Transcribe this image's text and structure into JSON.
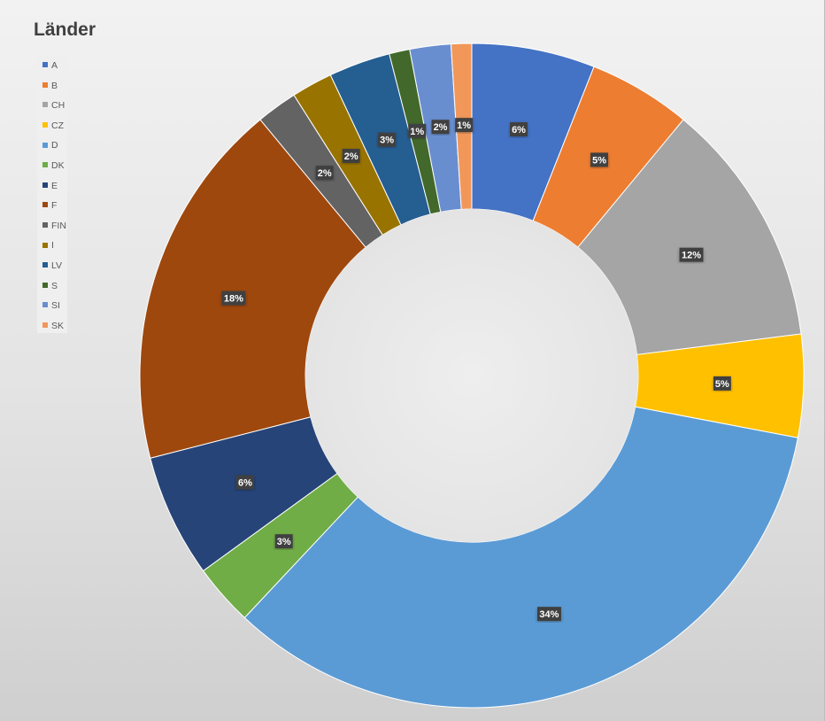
{
  "chart_data": {
    "type": "pie",
    "variant": "donut",
    "title": "Länder",
    "legend_position": "left",
    "categories": [
      "A",
      "B",
      "CH",
      "CZ",
      "D",
      "DK",
      "E",
      "F",
      "FIN",
      "I",
      "LV",
      "S",
      "SI",
      "SK"
    ],
    "values": [
      6,
      5,
      12,
      5,
      34,
      3,
      6,
      18,
      2,
      2,
      3,
      1,
      2,
      1
    ],
    "labels": [
      "6%",
      "5%",
      "12%",
      "5%",
      "34%",
      "3%",
      "6%",
      "18%",
      "2%",
      "2%",
      "3%",
      "1%",
      "2%",
      "1%"
    ],
    "colors": [
      "#4472c4",
      "#ed7d31",
      "#a5a5a5",
      "#ffc000",
      "#5b9bd5",
      "#70ad47",
      "#264478",
      "#9e480e",
      "#636363",
      "#997300",
      "#255e91",
      "#43682b",
      "#698ed0",
      "#f1975a"
    ]
  }
}
